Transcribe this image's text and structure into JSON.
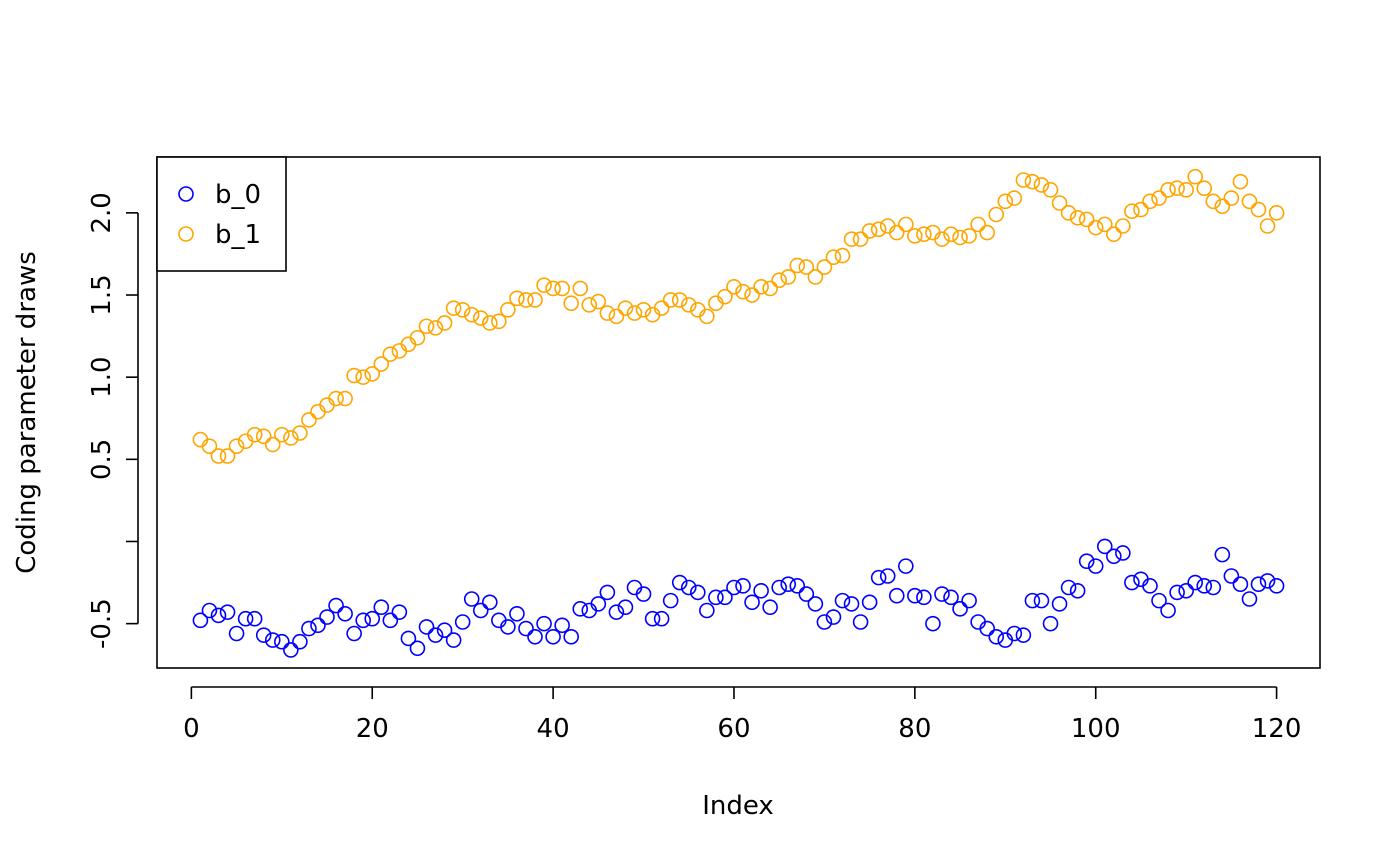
{
  "colors": {
    "b_0": "#0000ff",
    "b_1": "#ffa500",
    "axis": "#000000"
  },
  "chart_data": {
    "type": "scatter",
    "title": "",
    "xlabel": "Index",
    "ylabel": "Coding parameter draws",
    "xlim": [
      -3.8,
      124.8
    ],
    "ylim": [
      -0.77,
      2.34
    ],
    "xticks": [
      0,
      20,
      40,
      60,
      80,
      100,
      120
    ],
    "xtick_labels": [
      "0",
      "20",
      "40",
      "60",
      "80",
      "100",
      "120"
    ],
    "yticks": [
      -0.5,
      0,
      0.5,
      1.0,
      1.5,
      2.0
    ],
    "ytick_labels": [
      "-0.5",
      "",
      "0.5",
      "1.0",
      "1.5",
      "2.0"
    ],
    "grid": false,
    "legend": {
      "position": "top-left",
      "marker": "open-circle"
    },
    "series": [
      {
        "name": "b_0",
        "color": "#0000ff",
        "marker": "open-circle",
        "x": [
          1,
          2,
          3,
          4,
          5,
          6,
          7,
          8,
          9,
          10,
          11,
          12,
          13,
          14,
          15,
          16,
          17,
          18,
          19,
          20,
          21,
          22,
          23,
          24,
          25,
          26,
          27,
          28,
          29,
          30,
          31,
          32,
          33,
          34,
          35,
          36,
          37,
          38,
          39,
          40,
          41,
          42,
          43,
          44,
          45,
          46,
          47,
          48,
          49,
          50,
          51,
          52,
          53,
          54,
          55,
          56,
          57,
          58,
          59,
          60,
          61,
          62,
          63,
          64,
          65,
          66,
          67,
          68,
          69,
          70,
          71,
          72,
          73,
          74,
          75,
          76,
          77,
          78,
          79,
          80,
          81,
          82,
          83,
          84,
          85,
          86,
          87,
          88,
          89,
          90,
          91,
          92,
          93,
          94,
          95,
          96,
          97,
          98,
          99,
          100,
          101,
          102,
          103,
          104,
          105,
          106,
          107,
          108,
          109,
          110,
          111,
          112,
          113,
          114,
          115,
          116,
          117,
          118,
          119,
          120
        ],
        "y": [
          -0.48,
          -0.42,
          -0.45,
          -0.43,
          -0.56,
          -0.47,
          -0.47,
          -0.57,
          -0.6,
          -0.61,
          -0.66,
          -0.61,
          -0.53,
          -0.51,
          -0.46,
          -0.39,
          -0.44,
          -0.56,
          -0.48,
          -0.47,
          -0.4,
          -0.48,
          -0.43,
          -0.59,
          -0.65,
          -0.52,
          -0.57,
          -0.54,
          -0.6,
          -0.49,
          -0.35,
          -0.42,
          -0.37,
          -0.48,
          -0.52,
          -0.44,
          -0.53,
          -0.58,
          -0.5,
          -0.58,
          -0.51,
          -0.58,
          -0.41,
          -0.42,
          -0.38,
          -0.31,
          -0.43,
          -0.4,
          -0.28,
          -0.32,
          -0.47,
          -0.47,
          -0.36,
          -0.25,
          -0.28,
          -0.31,
          -0.42,
          -0.34,
          -0.34,
          -0.28,
          -0.27,
          -0.37,
          -0.3,
          -0.4,
          -0.28,
          -0.26,
          -0.27,
          -0.32,
          -0.38,
          -0.49,
          -0.46,
          -0.36,
          -0.38,
          -0.49,
          -0.37,
          -0.22,
          -0.21,
          -0.33,
          -0.15,
          -0.33,
          -0.34,
          -0.5,
          -0.32,
          -0.34,
          -0.41,
          -0.36,
          -0.49,
          -0.53,
          -0.58,
          -0.6,
          -0.56,
          -0.57,
          -0.36,
          -0.36,
          -0.5,
          -0.38,
          -0.28,
          -0.3,
          -0.12,
          -0.15,
          -0.03,
          -0.09,
          -0.07,
          -0.25,
          -0.23,
          -0.27,
          -0.36,
          -0.42,
          -0.31,
          -0.3,
          -0.25,
          -0.27,
          -0.28,
          -0.08,
          -0.21,
          -0.26,
          -0.35,
          -0.26,
          -0.24,
          -0.27
        ]
      },
      {
        "name": "b_1",
        "color": "#ffa500",
        "marker": "open-circle",
        "x": [
          1,
          2,
          3,
          4,
          5,
          6,
          7,
          8,
          9,
          10,
          11,
          12,
          13,
          14,
          15,
          16,
          17,
          18,
          19,
          20,
          21,
          22,
          23,
          24,
          25,
          26,
          27,
          28,
          29,
          30,
          31,
          32,
          33,
          34,
          35,
          36,
          37,
          38,
          39,
          40,
          41,
          42,
          43,
          44,
          45,
          46,
          47,
          48,
          49,
          50,
          51,
          52,
          53,
          54,
          55,
          56,
          57,
          58,
          59,
          60,
          61,
          62,
          63,
          64,
          65,
          66,
          67,
          68,
          69,
          70,
          71,
          72,
          73,
          74,
          75,
          76,
          77,
          78,
          79,
          80,
          81,
          82,
          83,
          84,
          85,
          86,
          87,
          88,
          89,
          90,
          91,
          92,
          93,
          94,
          95,
          96,
          97,
          98,
          99,
          100,
          101,
          102,
          103,
          104,
          105,
          106,
          107,
          108,
          109,
          110,
          111,
          112,
          113,
          114,
          115,
          116,
          117,
          118,
          119,
          120
        ],
        "y": [
          0.62,
          0.58,
          0.52,
          0.52,
          0.58,
          0.61,
          0.65,
          0.64,
          0.59,
          0.65,
          0.63,
          0.66,
          0.74,
          0.79,
          0.83,
          0.87,
          0.87,
          1.01,
          1.0,
          1.02,
          1.08,
          1.14,
          1.16,
          1.2,
          1.24,
          1.31,
          1.3,
          1.33,
          1.42,
          1.41,
          1.38,
          1.36,
          1.33,
          1.34,
          1.41,
          1.48,
          1.47,
          1.47,
          1.56,
          1.54,
          1.54,
          1.45,
          1.54,
          1.44,
          1.46,
          1.39,
          1.37,
          1.42,
          1.39,
          1.41,
          1.38,
          1.42,
          1.47,
          1.47,
          1.44,
          1.41,
          1.37,
          1.45,
          1.49,
          1.55,
          1.52,
          1.5,
          1.55,
          1.54,
          1.59,
          1.61,
          1.68,
          1.67,
          1.61,
          1.67,
          1.73,
          1.74,
          1.84,
          1.84,
          1.89,
          1.9,
          1.92,
          1.88,
          1.93,
          1.86,
          1.87,
          1.88,
          1.84,
          1.87,
          1.85,
          1.86,
          1.93,
          1.88,
          1.99,
          2.07,
          2.09,
          2.2,
          2.19,
          2.17,
          2.14,
          2.06,
          2.0,
          1.97,
          1.96,
          1.91,
          1.93,
          1.87,
          1.92,
          2.01,
          2.02,
          2.07,
          2.09,
          2.14,
          2.15,
          2.14,
          2.22,
          2.15,
          2.07,
          2.04,
          2.09,
          2.19,
          2.07,
          2.02,
          1.92,
          2.0
        ]
      }
    ]
  }
}
